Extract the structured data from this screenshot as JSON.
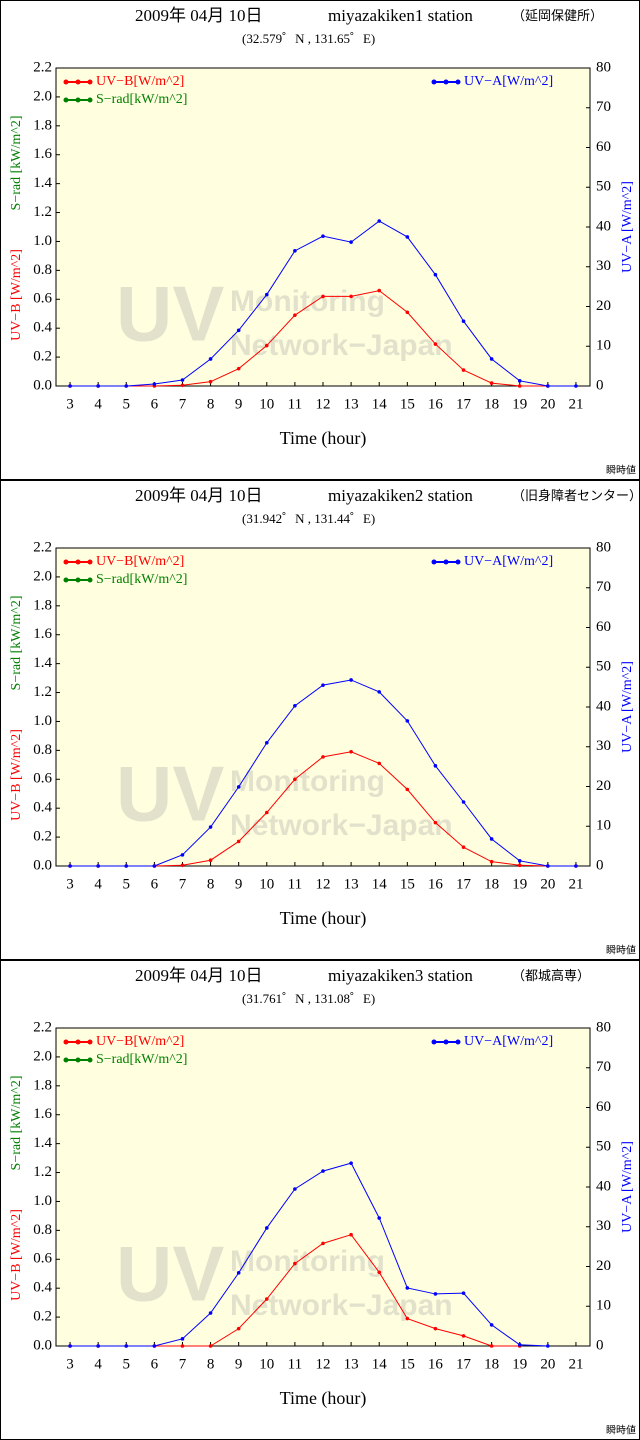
{
  "chart_data": [
    {
      "type": "line",
      "title": "2009年 04月 10日",
      "station": "miyazakiken1 station",
      "location": "（延岡保健所）",
      "subtitle": "(32.579゜N , 131.65゜E)",
      "xlabel": "Time (hour)",
      "ylabels": [
        "UV−B [W/m^2]",
        "S−rad [kW/m^2]"
      ],
      "y2label": "UV−A [W/m^2]",
      "note": "瞬時値",
      "watermark": [
        "UV",
        "Monitoring",
        "Network−Japan"
      ],
      "x": [
        3,
        4,
        5,
        6,
        7,
        8,
        9,
        10,
        11,
        12,
        13,
        14,
        15,
        16,
        17,
        18,
        19,
        20,
        21
      ],
      "xlim": [
        2.5,
        21.5
      ],
      "xticks": [
        3,
        4,
        5,
        6,
        7,
        8,
        9,
        10,
        11,
        12,
        13,
        14,
        15,
        16,
        17,
        18,
        19,
        20,
        21
      ],
      "ylim": [
        0,
        2.2
      ],
      "yticks": [
        {
          "value": 0,
          "label": "0.0"
        },
        {
          "value": 0.2,
          "label": "0.2"
        },
        {
          "value": 0.4,
          "label": "0.4"
        },
        {
          "value": 0.6,
          "label": "0.6"
        },
        {
          "value": 0.8,
          "label": "0.8"
        },
        {
          "value": 1,
          "label": "1.0"
        },
        {
          "value": 1.2,
          "label": "1.2"
        },
        {
          "value": 1.4,
          "label": "1.4"
        },
        {
          "value": 1.6,
          "label": "1.6"
        },
        {
          "value": 1.8,
          "label": "1.8"
        },
        {
          "value": 2,
          "label": "2.0"
        },
        {
          "value": 2.2,
          "label": "2.2"
        }
      ],
      "y2lim": [
        0,
        80
      ],
      "y2ticks": [
        0,
        10,
        20,
        30,
        40,
        50,
        60,
        70,
        80
      ],
      "series": [
        {
          "name": "UV−B[W/m^2]",
          "color": "#ff0000",
          "values": [
            0,
            0,
            0,
            0,
            0.005,
            0.03,
            0.12,
            0.28,
            0.49,
            0.62,
            0.62,
            0.66,
            0.51,
            0.29,
            0.11,
            0.02,
            0,
            0,
            null
          ]
        },
        {
          "name": "S−rad[kW/m^2]",
          "color": "#008000",
          "values": [
            null,
            null,
            null,
            null,
            null,
            null,
            null,
            null,
            null,
            null,
            null,
            null,
            null,
            null,
            null,
            null,
            null,
            null,
            null
          ]
        },
        {
          "name": "UV−A[W/m^2]",
          "color": "#0000ff",
          "axis": "y2",
          "values": [
            0,
            0,
            0,
            0.5,
            1.5,
            6.8,
            14,
            23,
            34,
            37.7,
            36.2,
            41.5,
            37.5,
            28,
            16.3,
            6.8,
            1.3,
            0,
            0
          ]
        }
      ]
    },
    {
      "type": "line",
      "title": "2009年 04月 10日",
      "station": "miyazakiken2 station",
      "location": "（旧身障者センター）",
      "subtitle": "(31.942゜N , 131.44゜E)",
      "xlabel": "Time (hour)",
      "ylabels": [
        "UV−B [W/m^2]",
        "S−rad [kW/m^2]"
      ],
      "y2label": "UV−A [W/m^2]",
      "note": "瞬時値",
      "watermark": [
        "UV",
        "Monitoring",
        "Network−Japan"
      ],
      "x": [
        3,
        4,
        5,
        6,
        7,
        8,
        9,
        10,
        11,
        12,
        13,
        14,
        15,
        16,
        17,
        18,
        19,
        20,
        21
      ],
      "xlim": [
        2.5,
        21.5
      ],
      "xticks": [
        3,
        4,
        5,
        6,
        7,
        8,
        9,
        10,
        11,
        12,
        13,
        14,
        15,
        16,
        17,
        18,
        19,
        20,
        21
      ],
      "ylim": [
        0,
        2.2
      ],
      "yticks": [
        {
          "value": 0,
          "label": "0.0"
        },
        {
          "value": 0.2,
          "label": "0.2"
        },
        {
          "value": 0.4,
          "label": "0.4"
        },
        {
          "value": 0.6,
          "label": "0.6"
        },
        {
          "value": 0.8,
          "label": "0.8"
        },
        {
          "value": 1,
          "label": "1.0"
        },
        {
          "value": 1.2,
          "label": "1.2"
        },
        {
          "value": 1.4,
          "label": "1.4"
        },
        {
          "value": 1.6,
          "label": "1.6"
        },
        {
          "value": 1.8,
          "label": "1.8"
        },
        {
          "value": 2,
          "label": "2.0"
        },
        {
          "value": 2.2,
          "label": "2.2"
        }
      ],
      "y2lim": [
        0,
        80
      ],
      "y2ticks": [
        0,
        10,
        20,
        30,
        40,
        50,
        60,
        70,
        80
      ],
      "series": [
        {
          "name": "UV−B[W/m^2]",
          "color": "#ff0000",
          "values": [
            0,
            0,
            0,
            0,
            0.005,
            0.04,
            0.17,
            0.37,
            0.6,
            0.755,
            0.79,
            0.71,
            0.53,
            0.3,
            0.13,
            0.03,
            0.005,
            0,
            0
          ]
        },
        {
          "name": "S−rad[kW/m^2]",
          "color": "#008000",
          "values": [
            null,
            null,
            null,
            null,
            null,
            null,
            null,
            null,
            null,
            null,
            null,
            null,
            null,
            null,
            null,
            null,
            null,
            null,
            null
          ]
        },
        {
          "name": "UV−A[W/m^2]",
          "color": "#0000ff",
          "axis": "y2",
          "values": [
            0,
            0,
            0,
            0,
            2.8,
            9.8,
            19.9,
            31,
            40.3,
            45.5,
            46.8,
            43.8,
            36.5,
            25.2,
            16.1,
            6.8,
            1.3,
            0,
            0
          ]
        }
      ]
    },
    {
      "type": "line",
      "title": "2009年 04月 10日",
      "station": "miyazakiken3 station",
      "location": "（都城高専）",
      "subtitle": "(31.761゜N , 131.08゜E)",
      "xlabel": "Time (hour)",
      "ylabels": [
        "UV−B [W/m^2]",
        "S−rad [kW/m^2]"
      ],
      "y2label": "UV−A [W/m^2]",
      "note": "瞬時値",
      "watermark": [
        "UV",
        "Monitoring",
        "Network−Japan"
      ],
      "x": [
        3,
        4,
        5,
        6,
        7,
        8,
        9,
        10,
        11,
        12,
        13,
        14,
        15,
        16,
        17,
        18,
        19,
        20,
        21
      ],
      "xlim": [
        2.5,
        21.5
      ],
      "xticks": [
        3,
        4,
        5,
        6,
        7,
        8,
        9,
        10,
        11,
        12,
        13,
        14,
        15,
        16,
        17,
        18,
        19,
        20,
        21
      ],
      "ylim": [
        0,
        2.2
      ],
      "yticks": [
        {
          "value": 0,
          "label": "0.0"
        },
        {
          "value": 0.2,
          "label": "0.2"
        },
        {
          "value": 0.4,
          "label": "0.4"
        },
        {
          "value": 0.6,
          "label": "0.6"
        },
        {
          "value": 0.8,
          "label": "0.8"
        },
        {
          "value": 1,
          "label": "1.0"
        },
        {
          "value": 1.2,
          "label": "1.2"
        },
        {
          "value": 1.4,
          "label": "1.4"
        },
        {
          "value": 1.6,
          "label": "1.6"
        },
        {
          "value": 1.8,
          "label": "1.8"
        },
        {
          "value": 2,
          "label": "2.0"
        },
        {
          "value": 2.2,
          "label": "2.2"
        }
      ],
      "y2lim": [
        0,
        80
      ],
      "y2ticks": [
        0,
        10,
        20,
        30,
        40,
        50,
        60,
        70,
        80
      ],
      "series": [
        {
          "name": "UV−B[W/m^2]",
          "color": "#ff0000",
          "values": [
            0,
            0,
            0,
            0,
            0,
            0,
            0.12,
            0.325,
            0.57,
            0.71,
            0.77,
            0.51,
            0.19,
            0.12,
            0.07,
            0,
            0,
            null,
            null
          ]
        },
        {
          "name": "S−rad[kW/m^2]",
          "color": "#008000",
          "values": [
            null,
            null,
            null,
            null,
            null,
            null,
            null,
            null,
            null,
            null,
            null,
            null,
            null,
            null,
            null,
            null,
            null,
            null,
            null
          ]
        },
        {
          "name": "UV−A[W/m^2]",
          "color": "#0000ff",
          "axis": "y2",
          "values": [
            0,
            0,
            0,
            0,
            1.8,
            8.3,
            18.4,
            29.7,
            39.5,
            44,
            46,
            32.2,
            14.6,
            13.1,
            13.3,
            5.3,
            0.3,
            0,
            null
          ]
        }
      ]
    }
  ]
}
